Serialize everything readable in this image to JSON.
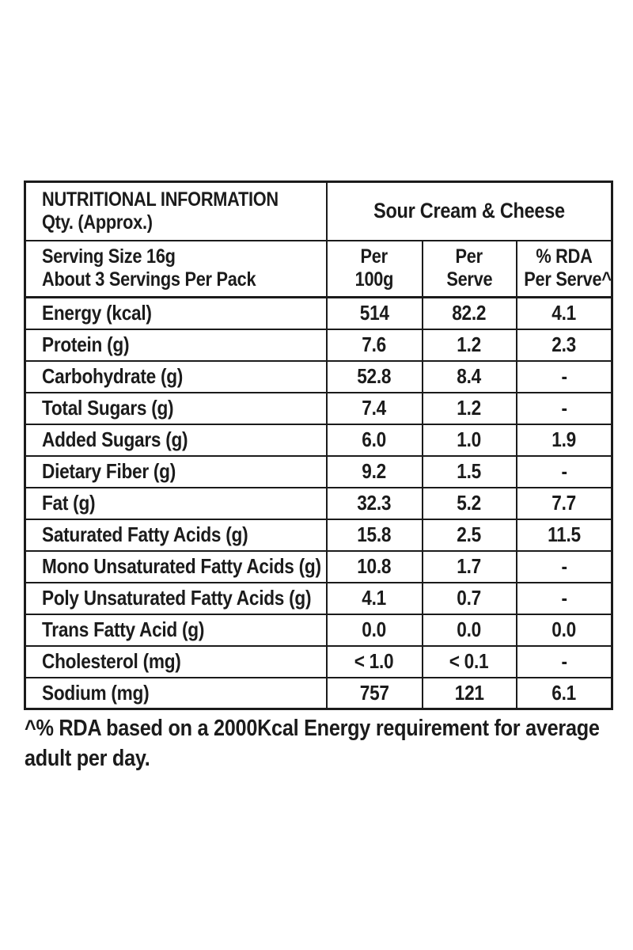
{
  "table": {
    "header": {
      "title_line1": "NUTRITIONAL INFORMATION",
      "title_line2": "Qty. (Approx.)",
      "product": "Sour Cream & Cheese",
      "serving_line1": "Serving Size 16g",
      "serving_line2": "About 3 Servings Per Pack",
      "col_per100g_line1": "Per",
      "col_per100g_line2": "100g",
      "col_perserve_line1": "Per",
      "col_perserve_line2": "Serve",
      "col_rda_line1": "% RDA",
      "col_rda_line2": "Per Serve^"
    },
    "rows": [
      {
        "label": "Energy (kcal)",
        "per100g": "514",
        "perServe": "82.2",
        "rda": "4.1"
      },
      {
        "label": "Protein (g)",
        "per100g": "7.6",
        "perServe": "1.2",
        "rda": "2.3"
      },
      {
        "label": "Carbohydrate (g)",
        "per100g": "52.8",
        "perServe": "8.4",
        "rda": "-"
      },
      {
        "label": "Total Sugars (g)",
        "per100g": "7.4",
        "perServe": "1.2",
        "rda": "-"
      },
      {
        "label": "Added Sugars (g)",
        "per100g": "6.0",
        "perServe": "1.0",
        "rda": "1.9"
      },
      {
        "label": "Dietary Fiber (g)",
        "per100g": "9.2",
        "perServe": "1.5",
        "rda": "-"
      },
      {
        "label": "Fat (g)",
        "per100g": "32.3",
        "perServe": "5.2",
        "rda": "7.7"
      },
      {
        "label": "Saturated Fatty Acids (g)",
        "per100g": "15.8",
        "perServe": "2.5",
        "rda": "11.5"
      },
      {
        "label": "Mono Unsaturated Fatty Acids (g)",
        "per100g": "10.8",
        "perServe": "1.7",
        "rda": "-"
      },
      {
        "label": "Poly Unsaturated Fatty Acids (g)",
        "per100g": "4.1",
        "perServe": "0.7",
        "rda": "-"
      },
      {
        "label": "Trans Fatty Acid (g)",
        "per100g": "0.0",
        "perServe": "0.0",
        "rda": "0.0"
      },
      {
        "label": "Cholesterol (mg)",
        "per100g": "< 1.0",
        "perServe": "< 0.1",
        "rda": "-"
      },
      {
        "label": "Sodium (mg)",
        "per100g": "757",
        "perServe": "121",
        "rda": "6.1"
      }
    ]
  },
  "footnote": {
    "line1": "^% RDA based on a 2000Kcal Energy requirement for average",
    "line2": "adult per day."
  },
  "colors": {
    "text": "#1b1b1b",
    "border": "#1b1b1b",
    "background": "#ffffff"
  }
}
